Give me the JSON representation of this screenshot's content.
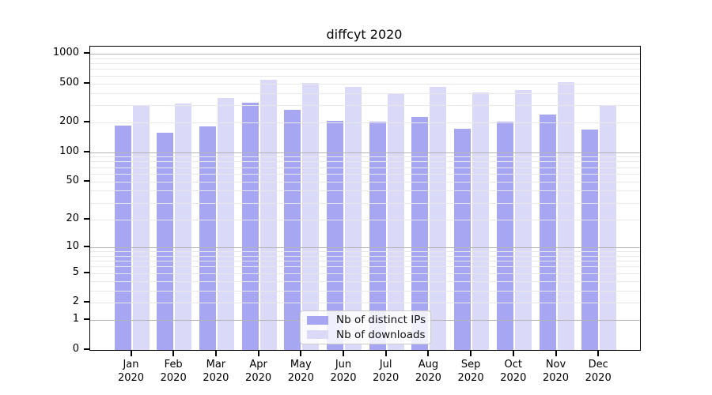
{
  "title": "diffcyt 2020",
  "colors": {
    "distinct_ips_bar": "#a6a6f2",
    "downloads_bar": "#dadaf8",
    "major_grid": "#b4b4b4",
    "minor_grid": "#e8e8e8",
    "axis": "#000000"
  },
  "legend": {
    "items": [
      {
        "label": "Nb of distinct IPs",
        "color": "#a6a6f2"
      },
      {
        "label": "Nb of downloads",
        "color": "#dadaf8"
      }
    ]
  },
  "x_axis": {
    "months": [
      "Jan",
      "Feb",
      "Mar",
      "Apr",
      "May",
      "Jun",
      "Jul",
      "Aug",
      "Sep",
      "Oct",
      "Nov",
      "Dec"
    ],
    "year": "2020"
  },
  "y_axis": {
    "tick_labels": [
      "0",
      "1",
      "2",
      "5",
      "10",
      "20",
      "50",
      "100",
      "200",
      "500",
      "1000"
    ]
  },
  "chart_data": {
    "type": "bar",
    "title": "diffcyt 2020",
    "categories": [
      "Jan 2020",
      "Feb 2020",
      "Mar 2020",
      "Apr 2020",
      "May 2020",
      "Jun 2020",
      "Jul 2020",
      "Aug 2020",
      "Sep 2020",
      "Oct 2020",
      "Nov 2020",
      "Dec 2020"
    ],
    "series": [
      {
        "name": "Nb of distinct IPs",
        "color": "#a6a6f2",
        "values": [
          185,
          157,
          183,
          318,
          272,
          209,
          206,
          230,
          172,
          204,
          241,
          171
        ]
      },
      {
        "name": "Nb of downloads",
        "color": "#dadaf8",
        "values": [
          295,
          312,
          358,
          545,
          503,
          460,
          389,
          459,
          406,
          430,
          512,
          297
        ]
      }
    ],
    "xlabel": "",
    "ylabel": "",
    "yscale": "log1p",
    "yticks": [
      0,
      1,
      2,
      5,
      10,
      20,
      50,
      100,
      200,
      500,
      1000
    ],
    "ylim": [
      0,
      1000
    ],
    "grid": "on",
    "legend_position": "lower center"
  }
}
